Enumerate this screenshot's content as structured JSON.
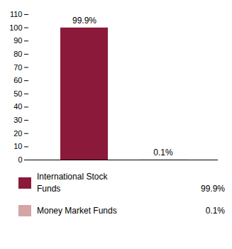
{
  "chart_data": {
    "type": "bar",
    "categories": [
      "International Stock\nFunds",
      "Money Market Funds"
    ],
    "values": [
      99.9,
      0.1
    ],
    "value_labels": [
      "99.9%",
      "0.1%"
    ],
    "colors": [
      "#8B1A3A",
      "#D4A5A5"
    ],
    "ylim": [
      0,
      110
    ],
    "yticks": [
      0,
      10,
      20,
      30,
      40,
      50,
      60,
      70,
      80,
      90,
      100,
      110
    ],
    "grid": false,
    "data_labels": true,
    "tick_labels": "y",
    "legend": "bottom"
  }
}
